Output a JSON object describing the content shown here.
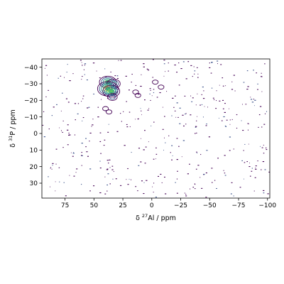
{
  "chart_data": {
    "type": "contour",
    "title": "",
    "xlabel": {
      "prefix": "δ ",
      "sup": "27",
      "rest": "Al / ppm"
    },
    "ylabel": {
      "prefix": "δ ",
      "sup": "31",
      "rest": "P / ppm"
    },
    "xlim": [
      95,
      -102
    ],
    "ylim": [
      39,
      -45
    ],
    "xticks": [
      75,
      50,
      25,
      0,
      -25,
      -50,
      -75,
      -100
    ],
    "xtick_labels": [
      "75",
      "50",
      "25",
      "0",
      "−25",
      "−50",
      "−75",
      "−100"
    ],
    "yticks": [
      -40,
      -30,
      -20,
      -10,
      0,
      10,
      20,
      30
    ],
    "ytick_labels": [
      "−40",
      "−30",
      "−20",
      "−10",
      "0",
      "10",
      "20",
      "30"
    ],
    "grid": false,
    "colormap": [
      "#440154",
      "#3b528b",
      "#21918c",
      "#5ec962",
      "#fde725"
    ],
    "peaks": [
      {
        "x": 38,
        "y": -31,
        "intensity": 0.7
      },
      {
        "x": 33,
        "y": -30,
        "intensity": 0.55
      },
      {
        "x": 38,
        "y": -27,
        "intensity": 0.9
      },
      {
        "x": 35,
        "y": -25.5,
        "intensity": 0.75
      },
      {
        "x": 34,
        "y": -22,
        "intensity": 0.35
      },
      {
        "x": 40,
        "y": -15,
        "intensity": 0.25
      },
      {
        "x": 37,
        "y": -13,
        "intensity": 0.2
      },
      {
        "x": 14,
        "y": -25,
        "intensity": 0.2
      },
      {
        "x": 12,
        "y": -23,
        "intensity": 0.15
      },
      {
        "x": -3,
        "y": -31,
        "intensity": 0.15
      },
      {
        "x": -8,
        "y": -28,
        "intensity": 0.12
      }
    ],
    "noise_points": 450
  }
}
